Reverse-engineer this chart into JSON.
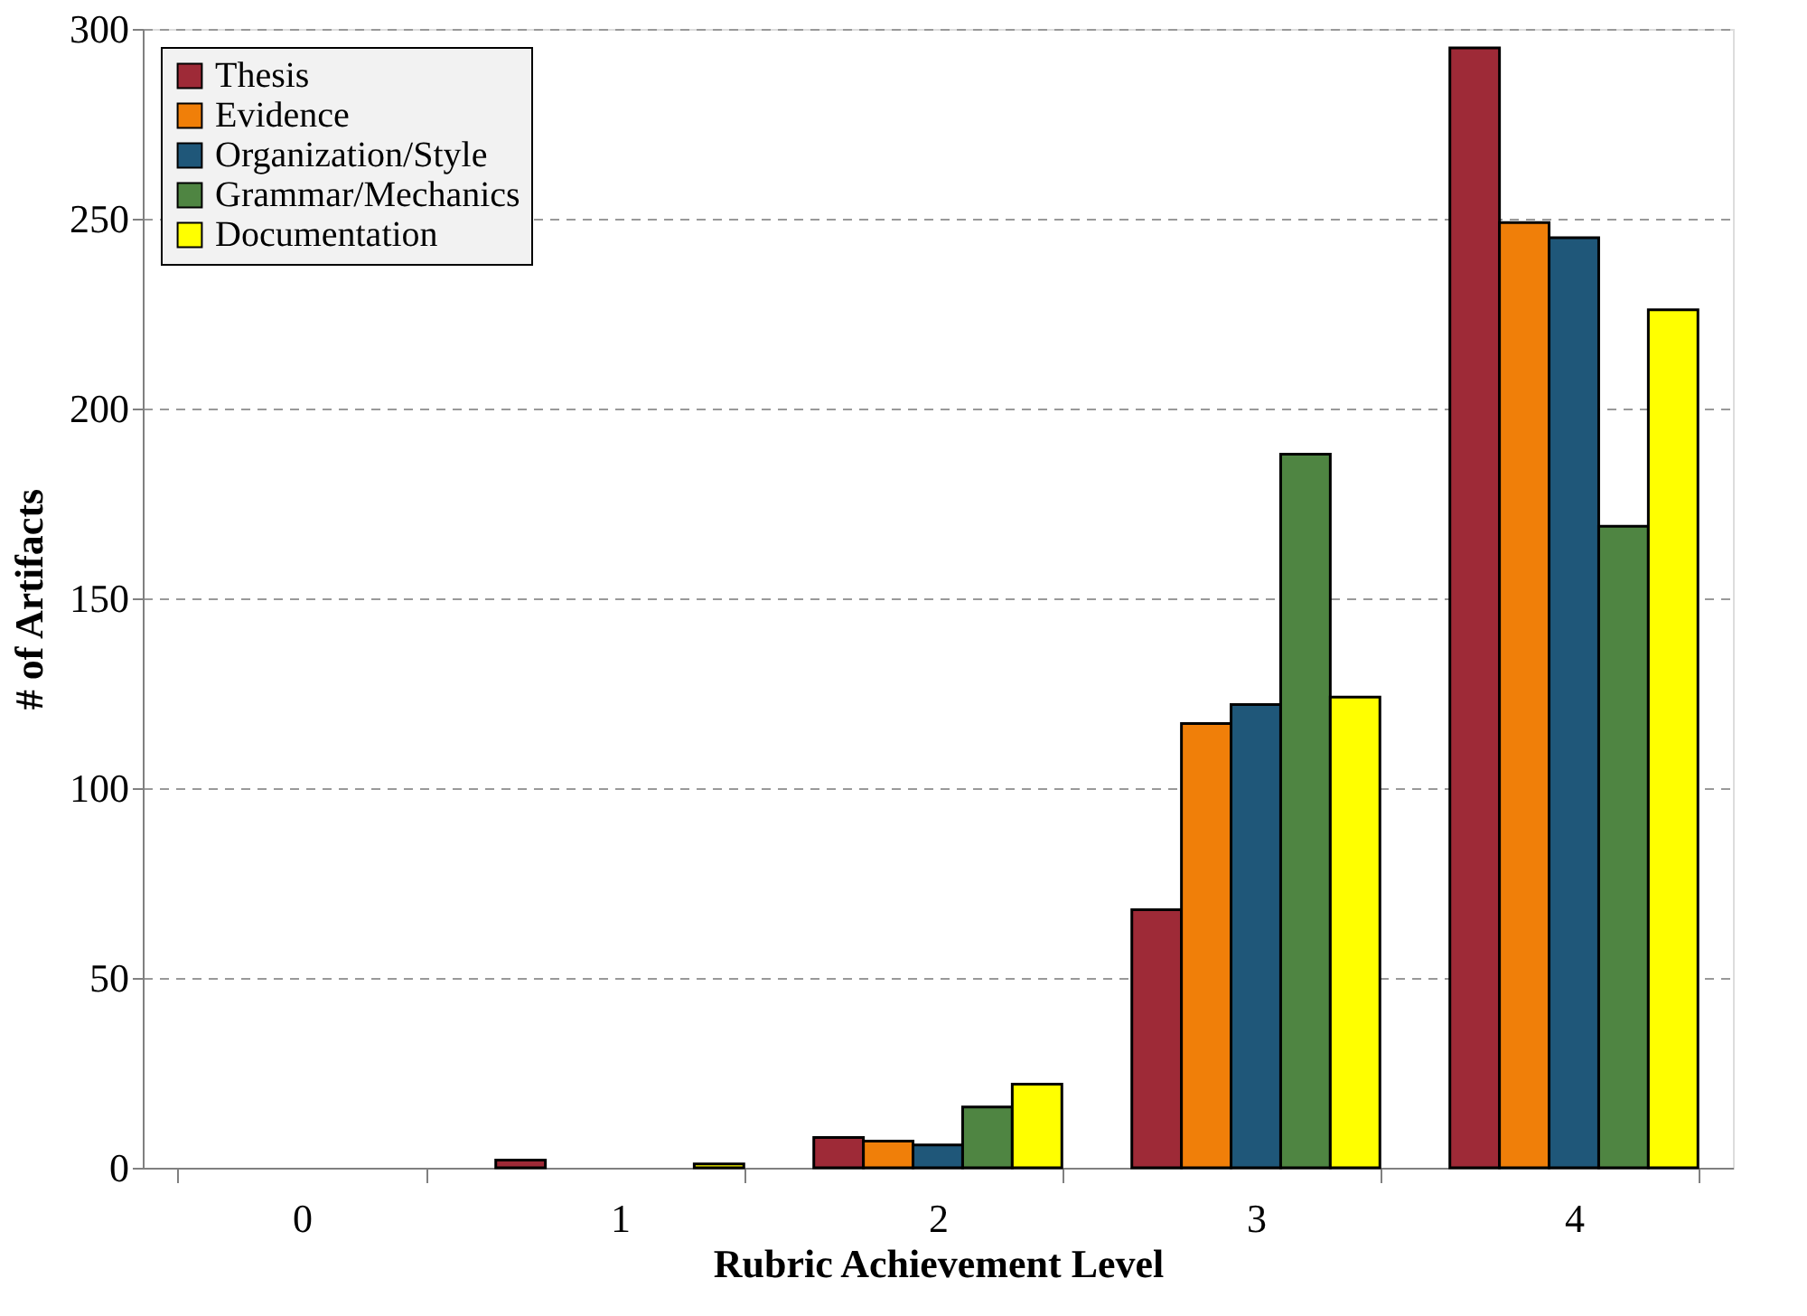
{
  "chart_data": {
    "type": "bar",
    "xlabel": "Rubric Achievement Level",
    "ylabel": "# of Artifacts",
    "categories": [
      "0",
      "1",
      "2",
      "3",
      "4"
    ],
    "series": [
      {
        "name": "Thesis",
        "color": "#9e2a37",
        "values": [
          0,
          2,
          8,
          68,
          295
        ]
      },
      {
        "name": "Evidence",
        "color": "#f07f09",
        "values": [
          0,
          0,
          7,
          117,
          249
        ]
      },
      {
        "name": "Organization/Style",
        "color": "#1f5779",
        "values": [
          0,
          0,
          6,
          122,
          245
        ]
      },
      {
        "name": "Grammar/Mechanics",
        "color": "#4f8542",
        "values": [
          0,
          0,
          16,
          188,
          169
        ]
      },
      {
        "name": "Documentation",
        "color": "#ffff00",
        "values": [
          0,
          1,
          22,
          124,
          226
        ]
      }
    ],
    "ylim": [
      0,
      300
    ],
    "yticks": [
      0,
      50,
      100,
      150,
      200,
      250,
      300
    ],
    "grid": "y",
    "legend": "top left"
  }
}
